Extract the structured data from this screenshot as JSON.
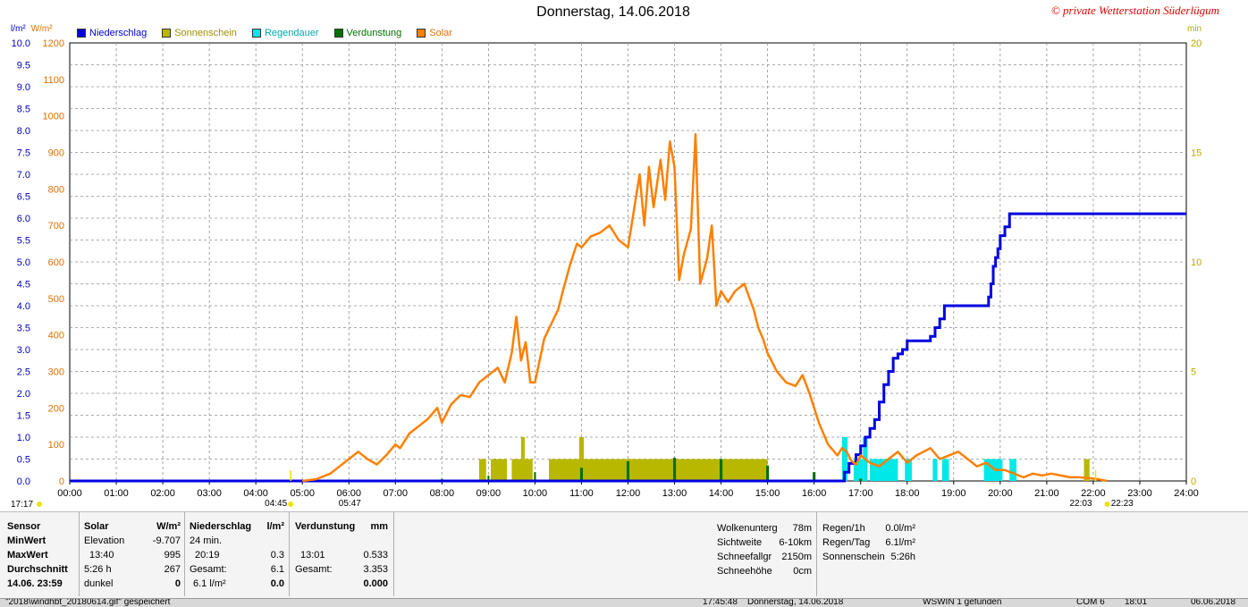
{
  "title": "Donnerstag, 14.06.2018",
  "copyright": "© private Wetterstation Süderlügum",
  "axis_units": {
    "left1": "l/m²",
    "left2": "W/m²",
    "right": "min"
  },
  "legend": [
    {
      "name": "Niederschlag",
      "color": "#0000e0"
    },
    {
      "name": "Sonnenschein",
      "color": "#b8b800"
    },
    {
      "name": "Regendauer",
      "color": "#00e8e8"
    },
    {
      "name": "Verdunstung",
      "color": "#007000"
    },
    {
      "name": "Solar",
      "color": "#ff8000"
    }
  ],
  "chart_data": {
    "type": "line",
    "title": "Donnerstag, 14.06.2018",
    "x_ticks": [
      "00:00",
      "01:00",
      "02:00",
      "03:00",
      "04:00",
      "05:00",
      "06:00",
      "07:00",
      "08:00",
      "09:00",
      "10:00",
      "11:00",
      "12:00",
      "13:00",
      "14:00",
      "15:00",
      "16:00",
      "17:00",
      "18:00",
      "19:00",
      "20:00",
      "21:00",
      "22:00",
      "23:00",
      "24:00"
    ],
    "x_range_hours": [
      0,
      24
    ],
    "y_left_precip_ticks": [
      "0.0",
      "0.5",
      "1.0",
      "1.5",
      "2.0",
      "2.5",
      "3.0",
      "3.5",
      "4.0",
      "4.5",
      "5.0",
      "5.5",
      "6.0",
      "6.5",
      "7.0",
      "7.5",
      "8.0",
      "8.5",
      "9.0",
      "9.5",
      "10.0"
    ],
    "y_left_precip_range": [
      0,
      10
    ],
    "y_left_solar_ticks": [
      "0",
      "100",
      "200",
      "300",
      "400",
      "500",
      "600",
      "700",
      "800",
      "900",
      "1000",
      "1100",
      "1200"
    ],
    "y_left_solar_range": [
      0,
      1200
    ],
    "y_right_ticks": [
      "0",
      "5",
      "10",
      "15",
      "20"
    ],
    "y_right_range": [
      0,
      20
    ],
    "grid": true,
    "legend_position": "top-left",
    "sun_markers": {
      "left_time": "17:17",
      "sunrise": "04:45",
      "sunrise2": "05:47",
      "sunset": "22:03",
      "sunset2": "22:23"
    },
    "series": [
      {
        "name": "Niederschlag",
        "axis": "left_precip",
        "color": "#0000e0",
        "x": [
          0,
          16.6,
          16.65,
          16.75,
          16.9,
          17.0,
          17.1,
          17.2,
          17.3,
          17.4,
          17.5,
          17.6,
          17.7,
          17.8,
          17.9,
          18.0,
          18.3,
          18.5,
          18.6,
          18.7,
          18.8,
          19.7,
          19.75,
          19.8,
          19.85,
          19.9,
          19.95,
          20.0,
          20.1,
          20.2,
          24
        ],
        "values": [
          0,
          0,
          0.2,
          0.4,
          0.6,
          0.8,
          1.0,
          1.2,
          1.4,
          1.8,
          2.2,
          2.5,
          2.8,
          2.9,
          3.0,
          3.2,
          3.2,
          3.3,
          3.5,
          3.7,
          4.0,
          4.0,
          4.2,
          4.5,
          4.9,
          5.1,
          5.3,
          5.6,
          5.8,
          6.1,
          6.1
        ]
      },
      {
        "name": "Solar",
        "axis": "left_solar",
        "color": "#ff8000",
        "x": [
          5.0,
          5.3,
          5.6,
          5.8,
          6.0,
          6.2,
          6.4,
          6.6,
          6.8,
          7.0,
          7.1,
          7.3,
          7.5,
          7.7,
          7.9,
          8.0,
          8.2,
          8.4,
          8.6,
          8.8,
          9.0,
          9.2,
          9.35,
          9.5,
          9.6,
          9.7,
          9.8,
          9.9,
          10.0,
          10.1,
          10.2,
          10.35,
          10.5,
          10.6,
          10.75,
          10.9,
          11.0,
          11.2,
          11.4,
          11.6,
          11.8,
          12.0,
          12.1,
          12.25,
          12.35,
          12.45,
          12.55,
          12.7,
          12.8,
          12.9,
          13.0,
          13.1,
          13.2,
          13.35,
          13.45,
          13.55,
          13.7,
          13.8,
          13.9,
          14.0,
          14.15,
          14.3,
          14.5,
          14.7,
          14.8,
          14.9,
          15.0,
          15.2,
          15.4,
          15.6,
          15.75,
          15.9,
          16.1,
          16.3,
          16.5,
          16.6,
          16.7,
          16.8,
          16.9,
          17.0,
          17.2,
          17.4,
          17.6,
          17.8,
          18.0,
          18.2,
          18.5,
          18.7,
          18.9,
          19.1,
          19.3,
          19.5,
          19.7,
          19.9,
          20.1,
          20.3,
          20.5,
          20.7,
          20.9,
          21.1,
          21.3,
          21.5,
          21.7,
          21.9,
          22.1,
          22.3
        ],
        "values": [
          0,
          5,
          20,
          40,
          60,
          80,
          60,
          45,
          70,
          100,
          90,
          130,
          150,
          170,
          200,
          160,
          210,
          235,
          230,
          270,
          290,
          310,
          270,
          350,
          450,
          330,
          380,
          270,
          270,
          330,
          390,
          430,
          470,
          520,
          590,
          650,
          640,
          670,
          680,
          700,
          660,
          640,
          720,
          840,
          700,
          860,
          750,
          880,
          770,
          930,
          860,
          550,
          620,
          690,
          950,
          540,
          610,
          700,
          480,
          520,
          490,
          520,
          540,
          470,
          420,
          390,
          350,
          300,
          270,
          260,
          290,
          240,
          160,
          100,
          70,
          90,
          80,
          55,
          45,
          70,
          50,
          40,
          60,
          80,
          50,
          70,
          90,
          60,
          70,
          80,
          60,
          40,
          50,
          30,
          30,
          20,
          10,
          20,
          15,
          20,
          15,
          10,
          10,
          8,
          5,
          0
        ]
      },
      {
        "name": "Sonnenschein",
        "axis": "right",
        "color": "#b8b800",
        "type": "bar",
        "bars": [
          {
            "start": 8.8,
            "end": 8.95,
            "value": 1
          },
          {
            "start": 9.05,
            "end": 9.4,
            "value": 1
          },
          {
            "start": 9.5,
            "end": 9.95,
            "value": 1
          },
          {
            "start": 9.7,
            "end": 9.78,
            "value": 2
          },
          {
            "start": 10.3,
            "end": 15.0,
            "value": 1
          },
          {
            "start": 10.95,
            "end": 11.05,
            "value": 2
          },
          {
            "start": 21.8,
            "end": 21.92,
            "value": 1
          }
        ]
      },
      {
        "name": "Regendauer",
        "axis": "right",
        "color": "#00e8e8",
        "type": "bar",
        "bars": [
          {
            "start": 16.6,
            "end": 16.72,
            "value": 2
          },
          {
            "start": 16.85,
            "end": 17.05,
            "value": 1
          },
          {
            "start": 17.05,
            "end": 17.15,
            "value": 2
          },
          {
            "start": 17.2,
            "end": 17.8,
            "value": 1
          },
          {
            "start": 17.95,
            "end": 18.1,
            "value": 1
          },
          {
            "start": 18.55,
            "end": 18.65,
            "value": 1
          },
          {
            "start": 18.75,
            "end": 18.9,
            "value": 1
          },
          {
            "start": 19.65,
            "end": 20.05,
            "value": 1
          },
          {
            "start": 20.2,
            "end": 20.35,
            "value": 1
          }
        ]
      },
      {
        "name": "Verdunstung",
        "axis": "left_precip",
        "color": "#007000",
        "type": "bar",
        "bars": [
          {
            "start": 7.98,
            "end": 8.02,
            "value": 0.05
          },
          {
            "start": 8.98,
            "end": 9.02,
            "value": 0.12
          },
          {
            "start": 9.98,
            "end": 10.02,
            "value": 0.2
          },
          {
            "start": 10.97,
            "end": 11.03,
            "value": 0.3
          },
          {
            "start": 11.97,
            "end": 12.03,
            "value": 0.45
          },
          {
            "start": 12.97,
            "end": 13.03,
            "value": 0.53
          },
          {
            "start": 13.97,
            "end": 14.03,
            "value": 0.5
          },
          {
            "start": 14.97,
            "end": 15.03,
            "value": 0.35
          },
          {
            "start": 15.97,
            "end": 16.03,
            "value": 0.2
          },
          {
            "start": 16.97,
            "end": 17.03,
            "value": 0.05
          }
        ]
      }
    ]
  },
  "stats": {
    "col1": [
      "Sensor",
      "MinWert",
      "MaxWert",
      "Durchschnitt",
      "14.06. 23:59"
    ],
    "col2": {
      "header": "Solar",
      "unit": "W/m²",
      "rows": [
        [
          "Elevation",
          "-9.707"
        ],
        [
          "13:40",
          "995"
        ],
        [
          "5:26 h",
          "267"
        ],
        [
          "dunkel",
          "0"
        ]
      ]
    },
    "col3": {
      "header": "Niederschlag",
      "unit": "l/m²",
      "rows": [
        [
          "24 min.",
          ""
        ],
        [
          "20:19",
          "0.3"
        ],
        [
          "Gesamt:",
          "6.1"
        ],
        [
          "6.1 l/m²",
          "0.0"
        ]
      ]
    },
    "col4": {
      "header": "Verdunstung",
      "unit": "mm",
      "rows": [
        [
          "",
          ""
        ],
        [
          "13:01",
          "0.533"
        ],
        [
          "Gesamt:",
          "3.353"
        ],
        [
          "",
          "0.000"
        ]
      ]
    },
    "col5": {
      "rows": [
        [
          "Wolkenunterg",
          "78m"
        ],
        [
          "Sichtweite",
          "6-10km"
        ],
        [
          "Schneefallgr",
          "2150m"
        ],
        [
          "Schneehöhe",
          "0cm"
        ]
      ]
    },
    "col6": {
      "rows": [
        [
          "Regen/1h",
          "0.0l/m²"
        ],
        [
          "Regen/Tag",
          "6.1l/m²"
        ],
        [
          "Sonnenschein",
          "5:26h"
        ]
      ]
    }
  },
  "statusbar": {
    "file": "\"2018\\windhbt_20180614.gif\" gespeichert",
    "time": "17:45:48",
    "date": "Donnerstag, 14.06.2018",
    "device": "WSWIN 1 gefunden",
    "port": "COM 6",
    "clock": "18:01",
    "date2": "06.06.2018"
  }
}
